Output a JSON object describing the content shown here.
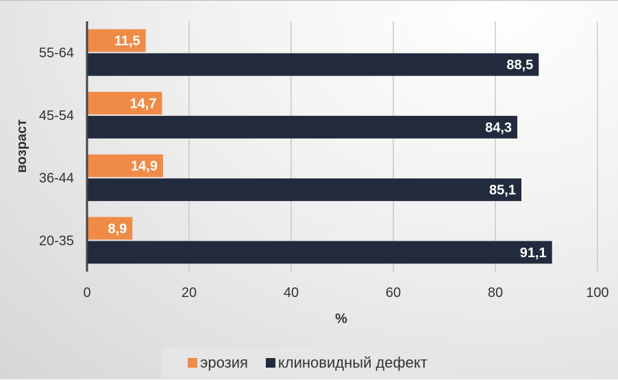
{
  "chart_data": {
    "type": "bar",
    "orientation": "horizontal",
    "categories": [
      "55-64",
      "45-54",
      "36-44",
      "20-35"
    ],
    "series": [
      {
        "name": "эрозия",
        "color": "#ef8b47",
        "values": [
          11.5,
          14.7,
          14.9,
          8.9
        ],
        "labels": [
          "11,5",
          "14,7",
          "14,9",
          "8,9"
        ]
      },
      {
        "name": "клиновидный дефект",
        "color": "#222b3d",
        "values": [
          88.5,
          84.3,
          85.1,
          91.1
        ],
        "labels": [
          "88,5",
          "84,3",
          "85,1",
          "91,1"
        ]
      }
    ],
    "xlabel": "%",
    "ylabel": "возраст",
    "xlim": [
      0,
      100
    ],
    "xticks": [
      "0",
      "20",
      "40",
      "60",
      "80",
      "100"
    ],
    "grid": true,
    "legend": "bottom"
  }
}
